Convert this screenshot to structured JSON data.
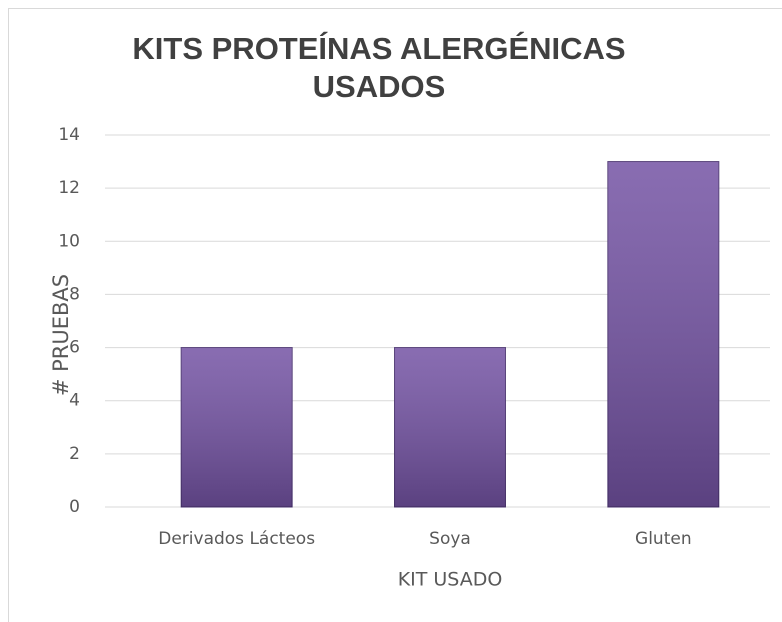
{
  "chart_data": {
    "type": "bar",
    "title": "KITS PROTEÍNAS ALERGÉNICAS USADOS",
    "x_label": "KIT USADO",
    "y_label": "# PRUEBAS",
    "categories": [
      "Derivados Lácteos",
      "Soya",
      "Gluten"
    ],
    "values": [
      6,
      6,
      13
    ],
    "color": "#7453a4",
    "ylim": [
      0,
      14
    ],
    "yticks": [
      0,
      2,
      4,
      6,
      8,
      10,
      12,
      14
    ],
    "grid": true
  }
}
